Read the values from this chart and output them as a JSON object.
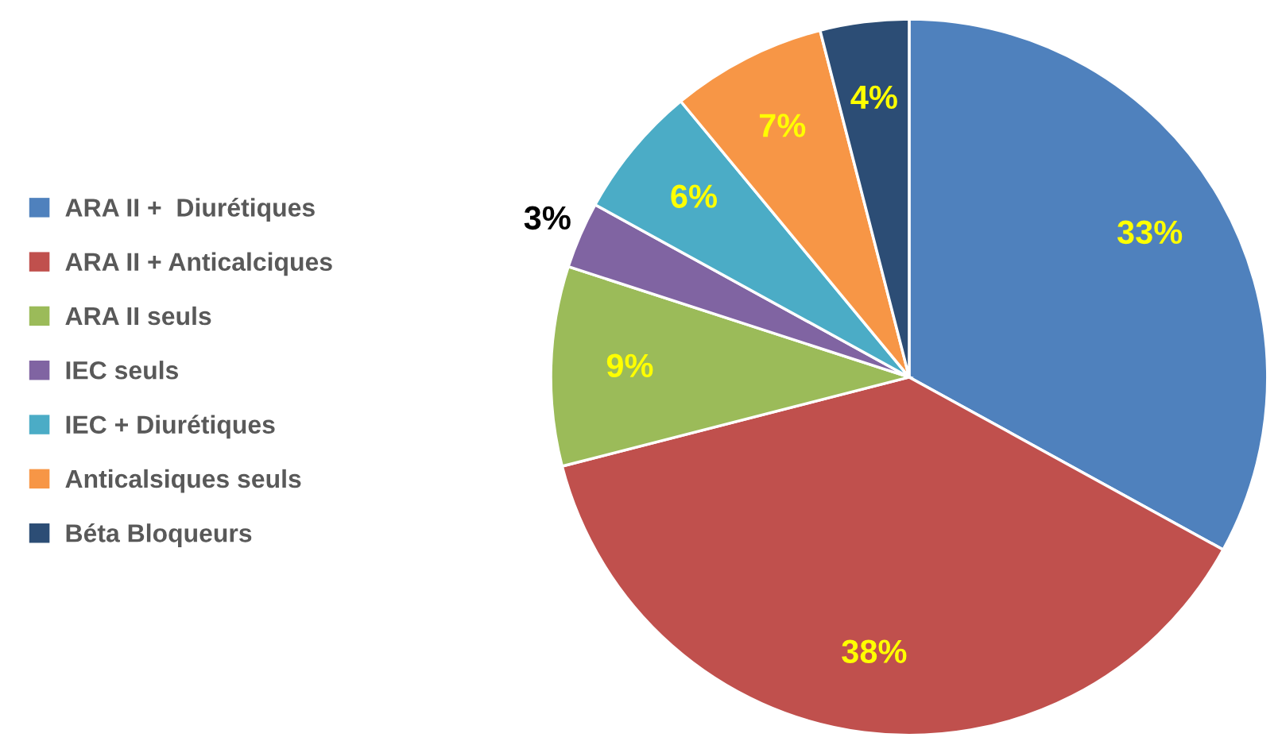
{
  "chart_data": {
    "type": "pie",
    "categories": [
      "ARA II +  Diurétiques",
      "ARA II + Anticalciques",
      "ARA II seuls",
      "IEC seuls",
      "IEC + Diurétiques",
      "Anticalsiques seuls",
      "Béta Bloqueurs"
    ],
    "values": [
      33,
      38,
      9,
      3,
      6,
      7,
      4
    ],
    "colors": [
      "#4f81bd",
      "#c0504d",
      "#9bbb59",
      "#8064a2",
      "#4bacc6",
      "#f79646",
      "#2c4d75"
    ],
    "value_labels": [
      "33%",
      "38%",
      "9%",
      "3%",
      "6%",
      "7%",
      "4%"
    ],
    "legend": "left"
  }
}
